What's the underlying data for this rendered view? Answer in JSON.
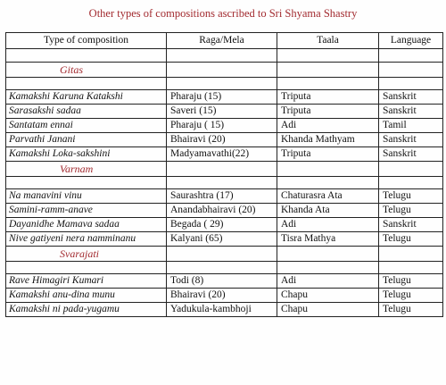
{
  "title": "Other types of compositions ascribed to Sri Shyama Shastry",
  "columns": [
    "Type of composition",
    "Raga/Mela",
    "Taala",
    "Language"
  ],
  "sections": [
    {
      "name": "Gitas",
      "rows": [
        [
          "Kamakshi Karuna Katakshi",
          "Pharaju (15)",
          "Triputa",
          "Sanskrit"
        ],
        [
          "Sarasakshi sadaa",
          "Saveri (15)",
          "Triputa",
          "Sanskrit"
        ],
        [
          "Santatam ennai",
          "Pharaju ( 15)",
          "Adi",
          "Tamil"
        ],
        [
          "Parvathi Janani",
          "Bhairavi (20)",
          "Khanda Mathyam",
          "Sanskrit"
        ],
        [
          "Kamakshi Loka-sakshini",
          "Madyamavathi(22)",
          "Triputa",
          "Sanskrit"
        ]
      ]
    },
    {
      "name": "Varnam",
      "rows": [
        [
          "Na manavini vinu",
          "Saurashtra (17)",
          "Chaturasra Ata",
          "Telugu"
        ],
        [
          "Samini-ramm-anave",
          "Anandabhairavi (20)",
          "Khanda Ata",
          "Telugu"
        ],
        [
          "Dayanidhe Mamava sadaa",
          "Begada ( 29)",
          "Adi",
          "Sanskrit"
        ],
        [
          "Nive gatiyeni nera namminanu",
          "Kalyani (65)",
          "Tisra Mathya",
          "Telugu"
        ]
      ]
    },
    {
      "name": "Svarajati",
      "rows": [
        [
          "Rave Himagiri Kumari",
          "Todi (8)",
          "Adi",
          "Telugu"
        ],
        [
          "Kamakshi anu-dina munu",
          "Bhairavi (20)",
          "Chapu",
          "Telugu"
        ],
        [
          "Kamakshi ni pada-yugamu",
          "Yadukula-kambhoji",
          "Chapu",
          "Telugu"
        ]
      ]
    }
  ]
}
